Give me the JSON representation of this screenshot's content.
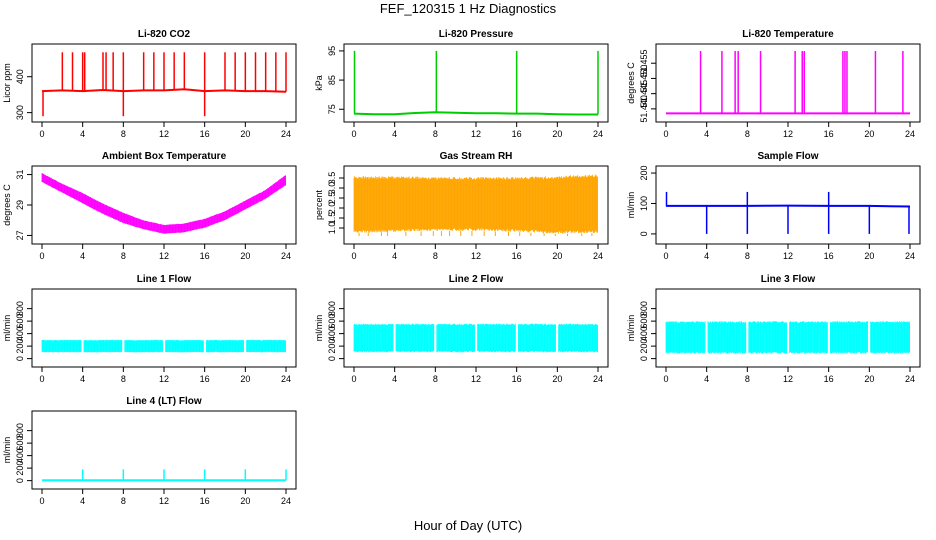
{
  "page": {
    "title": "FEF_120315  1 Hz Diagnostics",
    "xlabel": "Hour of Day (UTC)"
  },
  "colors": {
    "red": "#ff0000",
    "green": "#00cc00",
    "magenta": "#ff00ff",
    "orange": "#ffa500",
    "blue": "#0000ff",
    "cyan": "#00ffff"
  },
  "chart_data": [
    {
      "type": "line",
      "title": "Li-820 CO2",
      "ylabel": "Licor ppm",
      "color": "#ff0000",
      "xlim": [
        0,
        24
      ],
      "ylim": [
        285,
        480
      ],
      "xticks": [
        0,
        4,
        8,
        12,
        16,
        20,
        24
      ],
      "yticks": [
        300,
        400
      ],
      "x": [
        0,
        2,
        4,
        6,
        8,
        10,
        12,
        14,
        16,
        18,
        20,
        22,
        24
      ],
      "values": [
        360,
        362,
        360,
        363,
        360,
        362,
        362,
        365,
        360,
        362,
        360,
        360,
        358
      ],
      "spikes": [
        2,
        3,
        4,
        4.2,
        6,
        6.3,
        7,
        8,
        10,
        11,
        12,
        13,
        14,
        16,
        18,
        19,
        20,
        21,
        22,
        23,
        24
      ],
      "spike_high": 468,
      "dips": [
        0.1,
        8,
        16
      ],
      "dip_low": 290
    },
    {
      "type": "line",
      "title": "Li-820 Pressure",
      "ylabel": "kPa",
      "color": "#00cc00",
      "xlim": [
        0,
        24
      ],
      "ylim": [
        72,
        96
      ],
      "xticks": [
        0,
        4,
        8,
        12,
        16,
        20,
        24
      ],
      "yticks": [
        75,
        85,
        95
      ],
      "x": [
        0,
        2,
        4,
        6,
        8,
        10,
        12,
        14,
        16,
        18,
        20,
        22,
        24
      ],
      "values": [
        73.5,
        73.3,
        73.3,
        73.7,
        74,
        73.8,
        73.6,
        73.6,
        73.5,
        73.5,
        73.3,
        73.2,
        73.2
      ],
      "spikes": [
        0.05,
        8.1,
        16,
        24
      ],
      "spike_high": 95
    },
    {
      "type": "line",
      "title": "Li-820 Temperature",
      "ylabel": "degrees C",
      "color": "#ff00ff",
      "xlim": [
        0,
        24
      ],
      "ylim": [
        51.437,
        51.46
      ],
      "xticks": [
        0,
        4,
        8,
        12,
        16,
        20,
        24
      ],
      "yticks": [
        51.44,
        51.445,
        51.45,
        51.455
      ],
      "ytick_labels": [
        "51.440",
        "51.445",
        "51.450",
        "51.455"
      ],
      "x": [
        0,
        24
      ],
      "values": [
        51.4385,
        51.4385
      ],
      "spikes": [
        3.4,
        5.5,
        6.8,
        7.1,
        9.3,
        12.7,
        13.4,
        13.6,
        17.4,
        17.6,
        17.8,
        20.6,
        23.3
      ],
      "spike_high": 51.459
    },
    {
      "type": "area",
      "title": "Ambient Box Temperature",
      "ylabel": "degrees C",
      "color": "#ff00ff",
      "xlim": [
        0,
        24
      ],
      "ylim": [
        26.7,
        31.3
      ],
      "xticks": [
        0,
        4,
        8,
        12,
        16,
        20,
        24
      ],
      "yticks": [
        27,
        29,
        31
      ],
      "x": [
        0,
        2,
        4,
        6,
        8,
        10,
        12,
        14,
        16,
        18,
        20,
        22,
        24
      ],
      "upper": [
        31.1,
        30.4,
        29.8,
        29.1,
        28.5,
        28.0,
        27.7,
        27.8,
        28.1,
        28.6,
        29.3,
        30.0,
        31.0
      ],
      "lower": [
        30.5,
        29.8,
        29.1,
        28.4,
        27.8,
        27.4,
        27.1,
        27.2,
        27.5,
        28.0,
        28.7,
        29.4,
        30.3
      ]
    },
    {
      "type": "area",
      "title": "Gas Stream RH",
      "ylabel": "percent",
      "color": "#ffa500",
      "xlim": [
        0,
        24
      ],
      "ylim": [
        0.4,
        3.9
      ],
      "xticks": [
        0,
        4,
        8,
        12,
        16,
        20,
        24
      ],
      "yticks": [
        1.0,
        1.5,
        2.0,
        2.5,
        3.0,
        3.5
      ],
      "ytick_labels": [
        "1.0",
        "1.5",
        "2.0",
        "2.5",
        "3.0",
        "3.5"
      ],
      "x": [
        0,
        4,
        8,
        12,
        16,
        20,
        24
      ],
      "upper": [
        3.6,
        3.6,
        3.55,
        3.55,
        3.55,
        3.6,
        3.7
      ],
      "lower": [
        0.75,
        0.8,
        0.85,
        0.85,
        0.8,
        0.7,
        0.75
      ],
      "drops": [
        0.5,
        1.4,
        2.7,
        3.3,
        5.1,
        6.6,
        7.8,
        8.6,
        9.4,
        10.5,
        11.6,
        12.8,
        13.9,
        15.2,
        16.3,
        17.4,
        18.7,
        19.8,
        21.0,
        22.4,
        23.4
      ],
      "drop_low": 0.6
    },
    {
      "type": "line",
      "title": "Sample Flow",
      "ylabel": "ml/min",
      "color": "#0000ff",
      "xlim": [
        0,
        24
      ],
      "ylim": [
        -20,
        210
      ],
      "xticks": [
        0,
        4,
        8,
        12,
        16,
        20,
        24
      ],
      "yticks": [
        0,
        100,
        200
      ],
      "x": [
        0,
        4,
        8,
        12,
        16,
        20,
        24
      ],
      "values": [
        92,
        92,
        92,
        93,
        92,
        92,
        90
      ],
      "spikes": [
        0.05,
        8,
        16
      ],
      "spike_high": 138,
      "dips": [
        4,
        8,
        12,
        16,
        20,
        23.9
      ],
      "dip_low": 0
    },
    {
      "type": "area",
      "title": "Line 1 Flow",
      "ylabel": "ml/min",
      "color": "#00ffff",
      "xlim": [
        0,
        24
      ],
      "ylim": [
        -70,
        1050
      ],
      "xticks": [
        0,
        4,
        8,
        12,
        16,
        20,
        24
      ],
      "yticks": [
        0,
        200,
        400,
        600,
        800
      ],
      "x": [
        0,
        24
      ],
      "upper": [
        300,
        300
      ],
      "lower": [
        100,
        100
      ],
      "gaps": [
        4,
        8,
        12,
        16,
        20
      ]
    },
    {
      "type": "area",
      "title": "Line 2 Flow",
      "ylabel": "ml/min",
      "color": "#00ffff",
      "xlim": [
        0,
        24
      ],
      "ylim": [
        -70,
        1050
      ],
      "xticks": [
        0,
        4,
        8,
        12,
        16,
        20,
        24
      ],
      "yticks": [
        0,
        200,
        400,
        600,
        800
      ],
      "x": [
        0,
        24
      ],
      "upper": [
        560,
        560
      ],
      "lower": [
        100,
        100
      ],
      "gaps": [
        4,
        8,
        12,
        16,
        20
      ]
    },
    {
      "type": "area",
      "title": "Line 3 Flow",
      "ylabel": "ml/min",
      "color": "#00ffff",
      "xlim": [
        0,
        24
      ],
      "ylim": [
        -70,
        1050
      ],
      "xticks": [
        0,
        4,
        8,
        12,
        16,
        20,
        24
      ],
      "yticks": [
        0,
        200,
        400,
        600,
        800
      ],
      "x": [
        0,
        24
      ],
      "upper": [
        600,
        600
      ],
      "lower": [
        80,
        80
      ],
      "gaps": [
        4,
        8,
        12,
        16,
        20
      ]
    },
    {
      "type": "line",
      "title": "Line 4 (LT) Flow",
      "ylabel": "ml/min",
      "color": "#00ffff",
      "xlim": [
        0,
        24
      ],
      "ylim": [
        -70,
        1050
      ],
      "xticks": [
        0,
        4,
        8,
        12,
        16,
        20,
        24
      ],
      "yticks": [
        0,
        200,
        400,
        600,
        800
      ],
      "x": [
        0,
        24
      ],
      "values": [
        5,
        5
      ],
      "spikes": [
        4,
        8,
        12,
        16,
        20,
        24
      ],
      "spike_high": 180
    }
  ]
}
